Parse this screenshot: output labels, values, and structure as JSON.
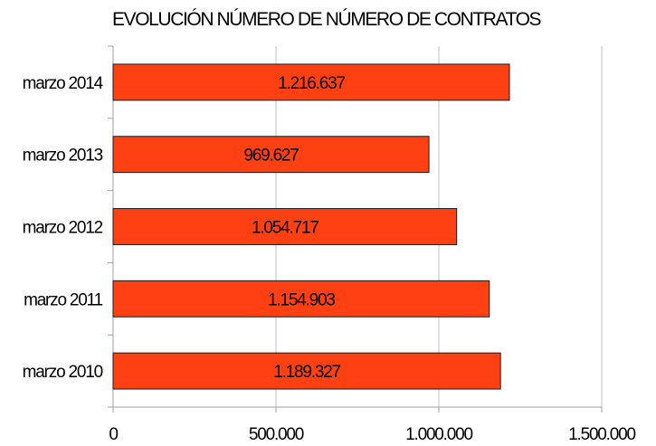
{
  "chart_data": {
    "type": "bar",
    "orientation": "horizontal",
    "title": "EVOLUCIÓN NÚMERO DE NÚMERO DE CONTRATOS",
    "categories": [
      "marzo 2014",
      "marzo 2013",
      "marzo 2012",
      "marzo 2011",
      "marzo 2010"
    ],
    "values": [
      1216637,
      969627,
      1054717,
      1154903,
      1189327
    ],
    "value_labels": [
      "1.216.637",
      "969.627",
      "1.054.717",
      "1.154.903",
      "1.189.327"
    ],
    "xlim": [
      0,
      1500000
    ],
    "xticks": [
      0,
      500000,
      1000000,
      1500000
    ],
    "xtick_labels": [
      "0",
      "500.000",
      "1.000.000",
      "1.500.000"
    ],
    "xlabel": "",
    "ylabel": "",
    "grid": "vertical",
    "legend": "none",
    "colors": {
      "bar": "#ff4013",
      "bar_border": "#1a1a1a",
      "grid": "#c0c0c0",
      "axis": "#a0a0a0"
    }
  }
}
